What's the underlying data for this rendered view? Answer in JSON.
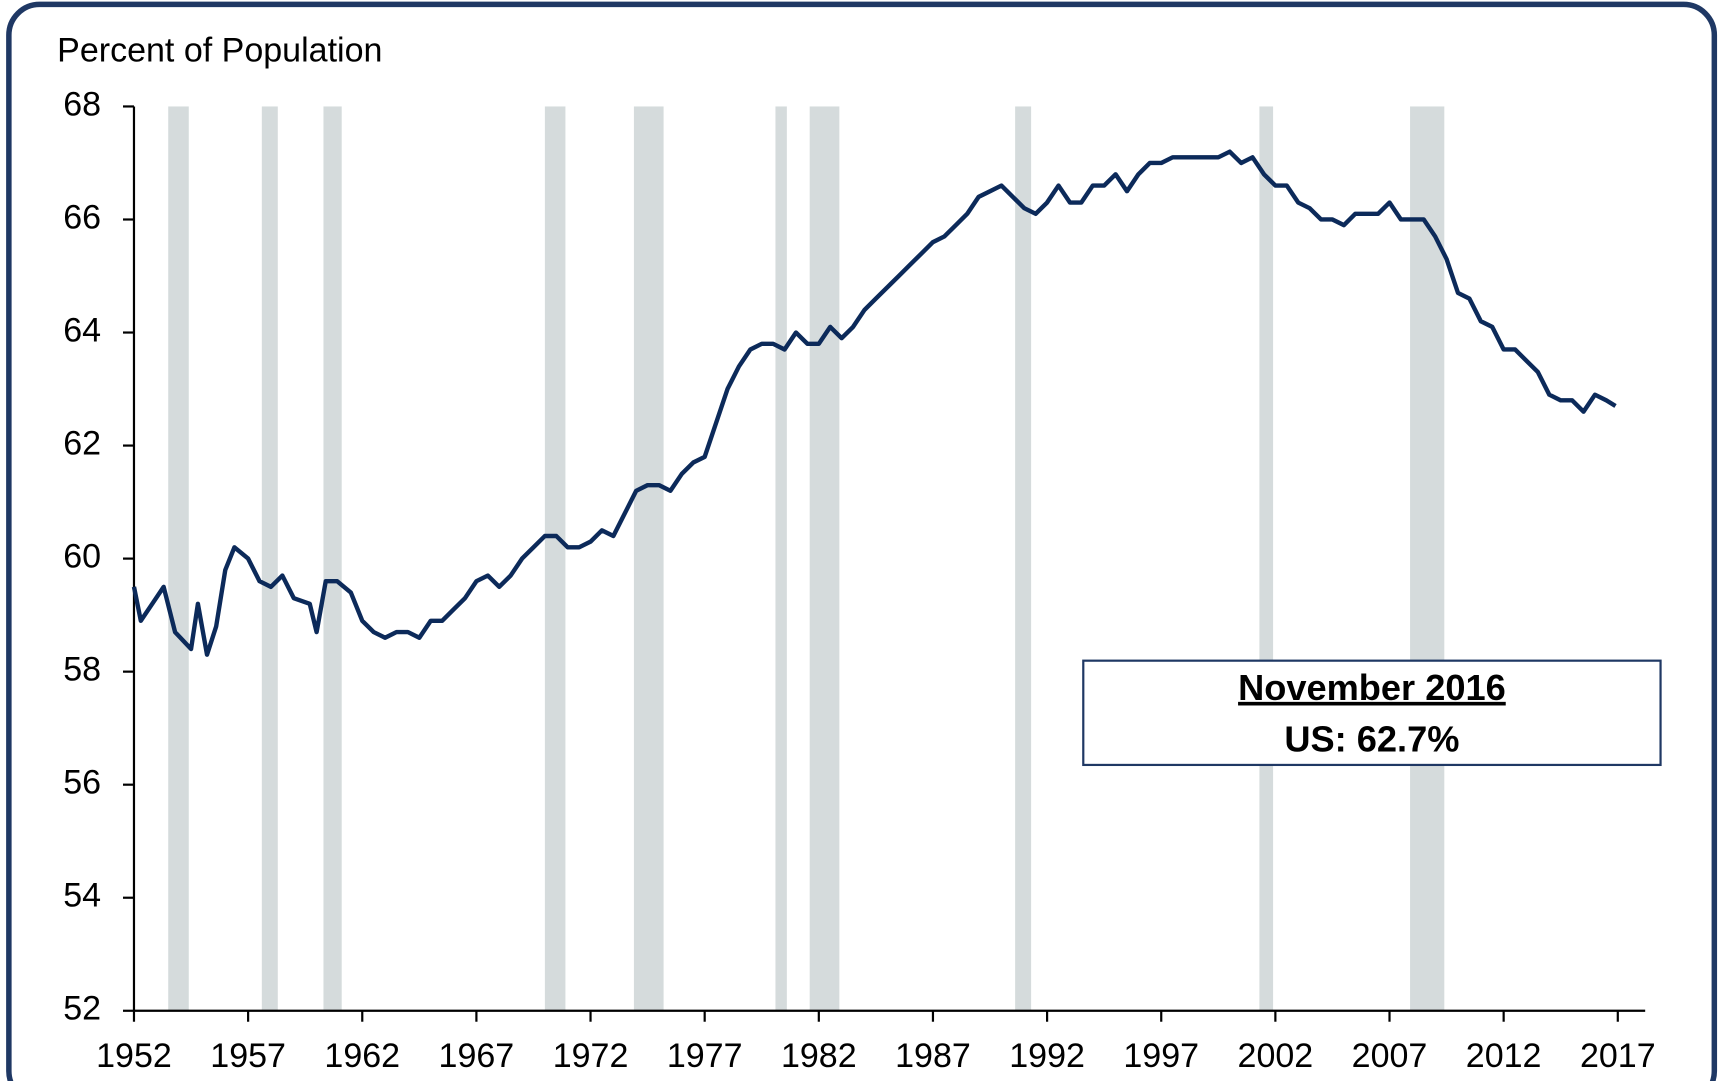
{
  "chart_data": {
    "type": "line",
    "y_label": "Percent of Population",
    "annotation": {
      "title": "November 2016",
      "text": "US: 62.7%"
    },
    "xlim": [
      1952,
      2018.2
    ],
    "xticks": [
      1952,
      1957,
      1962,
      1967,
      1972,
      1977,
      1982,
      1987,
      1992,
      1997,
      2002,
      2007,
      2012,
      2017
    ],
    "ylim": [
      52,
      68
    ],
    "yticks": [
      52,
      54,
      56,
      58,
      60,
      62,
      64,
      66,
      68
    ],
    "recessions": [
      [
        1953.5,
        1954.4
      ],
      [
        1957.6,
        1958.3
      ],
      [
        1960.3,
        1961.1
      ],
      [
        1970.0,
        1970.9
      ],
      [
        1973.9,
        1975.2
      ],
      [
        1980.1,
        1980.6
      ],
      [
        1981.6,
        1982.9
      ],
      [
        1990.6,
        1991.3
      ],
      [
        2001.3,
        2001.9
      ],
      [
        2007.9,
        2009.4
      ]
    ],
    "recession_color": "#d5dbdc",
    "series": [
      {
        "color": "#0c2a5a",
        "x": [
          1952,
          1952.3,
          1952.8,
          1953.3,
          1953.8,
          1954.5,
          1954.8,
          1955.2,
          1955.6,
          1956,
          1956.4,
          1957,
          1957.5,
          1958,
          1958.5,
          1959,
          1959.7,
          1960,
          1960.4,
          1960.9,
          1961.5,
          1962,
          1962.5,
          1963,
          1963.5,
          1964,
          1964.5,
          1965,
          1965.5,
          1966,
          1966.5,
          1967,
          1967.5,
          1968,
          1968.5,
          1969,
          1969.5,
          1970,
          1970.5,
          1971,
          1971.5,
          1972,
          1972.5,
          1973,
          1973.5,
          1974,
          1974.5,
          1975,
          1975.5,
          1976,
          1976.5,
          1977,
          1977.5,
          1978,
          1978.5,
          1979,
          1979.5,
          1980,
          1980.5,
          1981,
          1981.5,
          1982,
          1982.5,
          1983,
          1983.5,
          1984,
          1984.5,
          1985,
          1985.5,
          1986,
          1986.5,
          1987,
          1987.5,
          1988,
          1988.5,
          1989,
          1989.5,
          1990,
          1990.5,
          1991,
          1991.5,
          1992,
          1992.5,
          1993,
          1993.5,
          1994,
          1994.5,
          1995,
          1995.5,
          1996,
          1996.5,
          1997,
          1997.5,
          1998,
          1998.5,
          1999,
          1999.5,
          2000,
          2000.5,
          2001,
          2001.5,
          2002,
          2002.5,
          2003,
          2003.5,
          2004,
          2004.5,
          2005,
          2005.5,
          2006,
          2006.5,
          2007,
          2007.5,
          2008,
          2008.5,
          2009,
          2009.5,
          2010,
          2010.5,
          2011,
          2011.5,
          2012,
          2012.5,
          2013,
          2013.5,
          2014,
          2014.5,
          2015,
          2015.5,
          2016,
          2016.5,
          2016.9
        ],
        "values": [
          59.5,
          58.9,
          59.2,
          59.5,
          58.7,
          58.4,
          59.2,
          58.3,
          58.8,
          59.8,
          60.2,
          60.0,
          59.6,
          59.5,
          59.7,
          59.3,
          59.2,
          58.7,
          59.6,
          59.6,
          59.4,
          58.9,
          58.7,
          58.6,
          58.7,
          58.7,
          58.6,
          58.9,
          58.9,
          59.1,
          59.3,
          59.6,
          59.7,
          59.5,
          59.7,
          60.0,
          60.2,
          60.4,
          60.4,
          60.2,
          60.2,
          60.3,
          60.5,
          60.4,
          60.8,
          61.2,
          61.3,
          61.3,
          61.2,
          61.5,
          61.7,
          61.8,
          62.4,
          63.0,
          63.4,
          63.7,
          63.8,
          63.8,
          63.7,
          64.0,
          63.8,
          63.8,
          64.1,
          63.9,
          64.1,
          64.4,
          64.6,
          64.8,
          65.0,
          65.2,
          65.4,
          65.6,
          65.7,
          65.9,
          66.1,
          66.4,
          66.5,
          66.6,
          66.4,
          66.2,
          66.1,
          66.3,
          66.6,
          66.3,
          66.3,
          66.6,
          66.6,
          66.8,
          66.5,
          66.8,
          67.0,
          67.0,
          67.1,
          67.1,
          67.1,
          67.1,
          67.1,
          67.2,
          67.0,
          67.1,
          66.8,
          66.6,
          66.6,
          66.3,
          66.2,
          66.0,
          66.0,
          65.9,
          66.1,
          66.1,
          66.1,
          66.3,
          66.0,
          66.0,
          66.0,
          65.7,
          65.3,
          64.7,
          64.6,
          64.2,
          64.1,
          63.7,
          63.7,
          63.5,
          63.3,
          62.9,
          62.8,
          62.8,
          62.6,
          62.9,
          62.8,
          62.7
        ]
      }
    ]
  }
}
